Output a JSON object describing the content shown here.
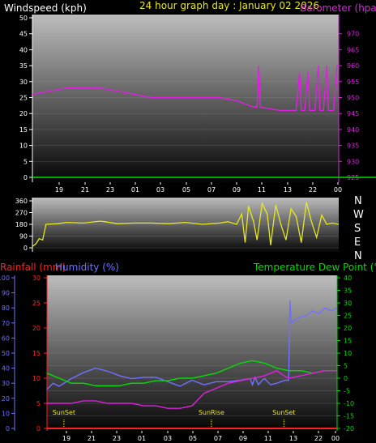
{
  "header": {
    "windspeed_label": "Windspeed (kph)",
    "title": "24 hour graph day : January 02 2026",
    "barometer_label": "Barometer (hpa)"
  },
  "compass": [
    "N",
    "W",
    "S",
    "E",
    "N"
  ],
  "lower_labels": {
    "rainfall": "Rainfall (mm)",
    "humidity": "Humidity (%)",
    "temp_dew": "Temperature Dew Point (°C)"
  },
  "colors": {
    "wind": "#00e000",
    "barometer": "#e020e0",
    "direction": "#e8e820",
    "rain": "#ff2020",
    "humidity": "#7070ff",
    "temperature": "#00e000",
    "dewpoint": "#e020e0",
    "events": "#e8e820"
  },
  "chart_data": [
    {
      "type": "line",
      "name": "wind-barometer",
      "x_ticks": [
        "19",
        "21",
        "23",
        "01",
        "03",
        "05",
        "07",
        "09",
        "11",
        "13",
        "22",
        "00"
      ],
      "y_left": {
        "label": "Windspeed (kph)",
        "range": [
          0,
          50
        ],
        "ticks": [
          0,
          5,
          10,
          15,
          20,
          25,
          30,
          35,
          40,
          45,
          50
        ]
      },
      "y_right": {
        "label": "Barometer (hpa)",
        "range": [
          925,
          975
        ],
        "ticks": [
          925,
          930,
          935,
          940,
          945,
          950,
          955,
          960,
          965,
          970
        ]
      },
      "series": [
        {
          "name": "Windspeed",
          "axis": "left",
          "values": [
            [
              0,
              0
            ],
            [
              24,
              0
            ]
          ]
        },
        {
          "name": "Barometer",
          "axis": "right",
          "values": [
            [
              0,
              951
            ],
            [
              1,
              952
            ],
            [
              2,
              953
            ],
            [
              3,
              953
            ],
            [
              4,
              953
            ],
            [
              5,
              952
            ],
            [
              6,
              951
            ],
            [
              7,
              950
            ],
            [
              8,
              950
            ],
            [
              9,
              950
            ],
            [
              10,
              950
            ],
            [
              11,
              950
            ],
            [
              12,
              949
            ],
            [
              12.5,
              948
            ],
            [
              13,
              947
            ],
            [
              13.2,
              947
            ],
            [
              13.3,
              960
            ],
            [
              13.4,
              947
            ],
            [
              14.5,
              946
            ],
            [
              15.5,
              946
            ],
            [
              15.7,
              958
            ],
            [
              15.8,
              946
            ],
            [
              16.0,
              946
            ],
            [
              16.2,
              958
            ],
            [
              16.3,
              946
            ],
            [
              16.6,
              946
            ],
            [
              16.8,
              960
            ],
            [
              16.9,
              946
            ],
            [
              17.1,
              946
            ],
            [
              17.3,
              960
            ],
            [
              17.4,
              946
            ],
            [
              17.7,
              946
            ],
            [
              17.9,
              960
            ],
            [
              18,
              960
            ]
          ]
        }
      ]
    },
    {
      "type": "line",
      "name": "wind-direction",
      "y_left": {
        "range": [
          0,
          360
        ],
        "ticks": [
          0,
          90,
          180,
          270,
          360
        ]
      },
      "series": [
        {
          "name": "Wind direction",
          "values": [
            [
              0,
              10
            ],
            [
              0.2,
              30
            ],
            [
              0.4,
              70
            ],
            [
              0.6,
              60
            ],
            [
              0.8,
              180
            ],
            [
              1.5,
              185
            ],
            [
              2,
              195
            ],
            [
              3,
              190
            ],
            [
              4,
              205
            ],
            [
              5,
              185
            ],
            [
              6,
              190
            ],
            [
              7,
              190
            ],
            [
              8,
              185
            ],
            [
              9,
              195
            ],
            [
              10,
              180
            ],
            [
              11,
              190
            ],
            [
              11.5,
              200
            ],
            [
              12,
              180
            ],
            [
              12.3,
              260
            ],
            [
              12.5,
              40
            ],
            [
              12.7,
              320
            ],
            [
              13,
              200
            ],
            [
              13.2,
              60
            ],
            [
              13.5,
              340
            ],
            [
              13.8,
              260
            ],
            [
              14,
              20
            ],
            [
              14.3,
              330
            ],
            [
              14.6,
              180
            ],
            [
              14.9,
              60
            ],
            [
              15.2,
              300
            ],
            [
              15.5,
              240
            ],
            [
              15.8,
              40
            ],
            [
              16.1,
              350
            ],
            [
              16.4,
              200
            ],
            [
              16.7,
              80
            ],
            [
              17.0,
              250
            ],
            [
              17.3,
              180
            ],
            [
              17.6,
              190
            ],
            [
              18,
              180
            ]
          ]
        }
      ]
    },
    {
      "type": "line",
      "name": "rain-humidity-temp",
      "x_ticks": [
        "19",
        "21",
        "23",
        "01",
        "03",
        "05",
        "07",
        "09",
        "11",
        "13",
        "22",
        "00"
      ],
      "y_rain": {
        "range": [
          0,
          30
        ],
        "ticks": [
          0,
          5,
          10,
          15,
          20,
          25,
          30
        ]
      },
      "y_humidity": {
        "range": [
          0,
          100
        ],
        "ticks": [
          0,
          10,
          20,
          30,
          40,
          50,
          60,
          70,
          80,
          90,
          100
        ]
      },
      "y_right": {
        "range": [
          -20,
          40
        ],
        "ticks": [
          -20,
          -15,
          -10,
          -5,
          0,
          5,
          10,
          15,
          20,
          25,
          30,
          35,
          40
        ]
      },
      "events": [
        {
          "label": "SunSet",
          "x": 1.4
        },
        {
          "label": "SunRise",
          "x": 13.6
        },
        {
          "label": "SunSet",
          "x": 19.6
        }
      ],
      "series": [
        {
          "name": "Rainfall",
          "axis": "rain",
          "values": [
            [
              0,
              0
            ],
            [
              24,
              0
            ]
          ]
        },
        {
          "name": "Humidity",
          "axis": "humidity",
          "values": [
            [
              0,
              26
            ],
            [
              0.5,
              30
            ],
            [
              1,
              28
            ],
            [
              2,
              33
            ],
            [
              3,
              37
            ],
            [
              4,
              40
            ],
            [
              5,
              38
            ],
            [
              6,
              35
            ],
            [
              7,
              33
            ],
            [
              8,
              34
            ],
            [
              9,
              34
            ],
            [
              10,
              31
            ],
            [
              11,
              28
            ],
            [
              12,
              32
            ],
            [
              13,
              29
            ],
            [
              14,
              31
            ],
            [
              15,
              31
            ],
            [
              16,
              32
            ],
            [
              16.8,
              33
            ],
            [
              17,
              29
            ],
            [
              17.2,
              34
            ],
            [
              17.5,
              29
            ],
            [
              17.8,
              32
            ],
            [
              18,
              33
            ],
            [
              18.5,
              29
            ],
            [
              19,
              30
            ],
            [
              19.7,
              32
            ],
            [
              20,
              32
            ],
            [
              20.1,
              85
            ],
            [
              20.2,
              70
            ],
            [
              20.5,
              72
            ],
            [
              21,
              74
            ],
            [
              21.5,
              75
            ],
            [
              22,
              78
            ],
            [
              22.5,
              76
            ],
            [
              23,
              80
            ],
            [
              23.5,
              78
            ],
            [
              24,
              80
            ]
          ]
        },
        {
          "name": "Temperature",
          "axis": "right",
          "values": [
            [
              0,
              2
            ],
            [
              1,
              0
            ],
            [
              2,
              -2
            ],
            [
              3,
              -2
            ],
            [
              4,
              -3
            ],
            [
              5,
              -3
            ],
            [
              6,
              -3
            ],
            [
              7,
              -2
            ],
            [
              8,
              -2
            ],
            [
              9,
              -1
            ],
            [
              10,
              -1
            ],
            [
              11,
              0
            ],
            [
              12,
              0
            ],
            [
              13,
              1
            ],
            [
              14,
              2
            ],
            [
              15,
              4
            ],
            [
              16,
              6
            ],
            [
              17,
              7
            ],
            [
              18,
              6
            ],
            [
              18.5,
              5
            ],
            [
              19,
              4
            ],
            [
              20,
              3
            ],
            [
              21,
              3
            ],
            [
              22,
              2
            ],
            [
              23,
              3
            ],
            [
              24,
              3
            ]
          ]
        },
        {
          "name": "Dew Point",
          "axis": "right",
          "values": [
            [
              0,
              -10
            ],
            [
              2,
              -10
            ],
            [
              3,
              -9
            ],
            [
              4,
              -9
            ],
            [
              5,
              -10
            ],
            [
              6,
              -10
            ],
            [
              7,
              -10
            ],
            [
              8,
              -11
            ],
            [
              9,
              -11
            ],
            [
              10,
              -12
            ],
            [
              11,
              -12
            ],
            [
              12,
              -11
            ],
            [
              13,
              -6
            ],
            [
              14,
              -4
            ],
            [
              15,
              -2
            ],
            [
              16,
              -1
            ],
            [
              17,
              0
            ],
            [
              18,
              1
            ],
            [
              18.5,
              2
            ],
            [
              19,
              3
            ],
            [
              19.6,
              1
            ],
            [
              20,
              0
            ],
            [
              21,
              1
            ],
            [
              22,
              2
            ],
            [
              23,
              3
            ],
            [
              24,
              3
            ]
          ]
        }
      ]
    }
  ]
}
